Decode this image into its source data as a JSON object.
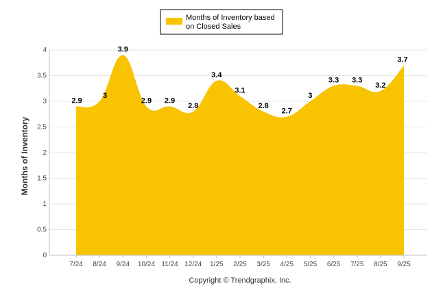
{
  "chart_data": {
    "type": "area",
    "categories": [
      "7/24",
      "8/24",
      "9/24",
      "10/24",
      "11/24",
      "12/24",
      "1/25",
      "2/25",
      "3/25",
      "4/25",
      "5/25",
      "6/25",
      "7/25",
      "8/25",
      "9/25"
    ],
    "series": [
      {
        "name": "Months of Inventory based on Closed Sales",
        "name_lines": [
          "Months of Inventory based",
          "on Closed Sales"
        ],
        "values": [
          2.9,
          3,
          3.9,
          2.9,
          2.9,
          2.8,
          3.4,
          3.1,
          2.8,
          2.7,
          3,
          3.3,
          3.3,
          3.2,
          3.7
        ],
        "labels": [
          "2.9",
          "3",
          "3.9",
          "2.9",
          "2.9",
          "2.8",
          "3.4",
          "3.1",
          "2.8",
          "2.7",
          "3",
          "3.3",
          "3.3",
          "3.2",
          "3.7"
        ],
        "color": "#F8C300"
      }
    ],
    "ylabel": "Months of Inventory",
    "ylim": [
      0,
      4
    ],
    "yticks": [
      "0",
      "0.5",
      "1",
      "1.5",
      "2",
      "2.5",
      "3",
      "3.5",
      "4"
    ],
    "grid": true,
    "legend": "top-center",
    "footer": "Copyright © Trendgraphix, Inc."
  }
}
